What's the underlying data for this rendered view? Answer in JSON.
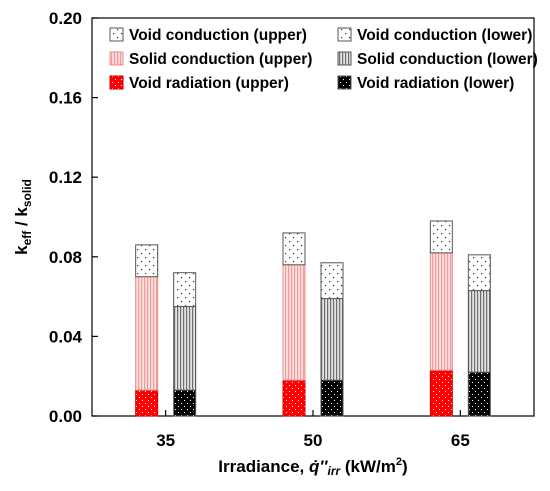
{
  "chart_data": {
    "type": "bar",
    "stacked": true,
    "grouped": true,
    "categories": [
      "35",
      "50",
      "65"
    ],
    "groups": [
      "upper",
      "lower"
    ],
    "xlabel_prefix": "Irradiance, ",
    "xlabel_symbol": "q̇''",
    "xlabel_symbol_sub": "irr",
    "xlabel_unit_prefix": " (kW/m",
    "xlabel_unit_sup": "2",
    "xlabel_unit_suffix": ")",
    "ylabel_k1": "k",
    "ylabel_sub1": "eff",
    "ylabel_sep": " / k",
    "ylabel_sub2": "solid",
    "ylim": [
      0,
      0.2
    ],
    "yticks": [
      "0.00",
      "0.04",
      "0.08",
      "0.12",
      "0.16",
      "0.20"
    ],
    "grid": false,
    "legend_position": "top",
    "series": [
      {
        "name": "Void radiation (upper)",
        "group": "upper",
        "component": "radiation",
        "color": "#ff0000",
        "values": [
          0.013,
          0.018,
          0.023
        ]
      },
      {
        "name": "Solid conduction (upper)",
        "group": "upper",
        "component": "solid",
        "color": "#f4b8b8",
        "values": [
          0.057,
          0.058,
          0.059
        ]
      },
      {
        "name": "Void conduction (upper)",
        "group": "upper",
        "component": "void",
        "color": "#ffffff",
        "values": [
          0.016,
          0.016,
          0.016
        ]
      },
      {
        "name": "Void radiation (lower)",
        "group": "lower",
        "component": "radiation",
        "color": "#000000",
        "values": [
          0.013,
          0.018,
          0.022
        ]
      },
      {
        "name": "Solid conduction (lower)",
        "group": "lower",
        "component": "solid",
        "color": "#9a9a9a",
        "values": [
          0.042,
          0.041,
          0.041
        ]
      },
      {
        "name": "Void conduction (lower)",
        "group": "lower",
        "component": "void",
        "color": "#ffffff",
        "values": [
          0.017,
          0.018,
          0.018
        ]
      }
    ],
    "legend": [
      {
        "label": "Void conduction (upper)",
        "series": 2
      },
      {
        "label": "Void conduction (lower)",
        "series": 5
      },
      {
        "label": "Solid conduction (upper)",
        "series": 1
      },
      {
        "label": "Solid conduction (lower)",
        "series": 4
      },
      {
        "label": "Void radiation (upper)",
        "series": 0
      },
      {
        "label": "Void radiation (lower)",
        "series": 3
      }
    ]
  }
}
